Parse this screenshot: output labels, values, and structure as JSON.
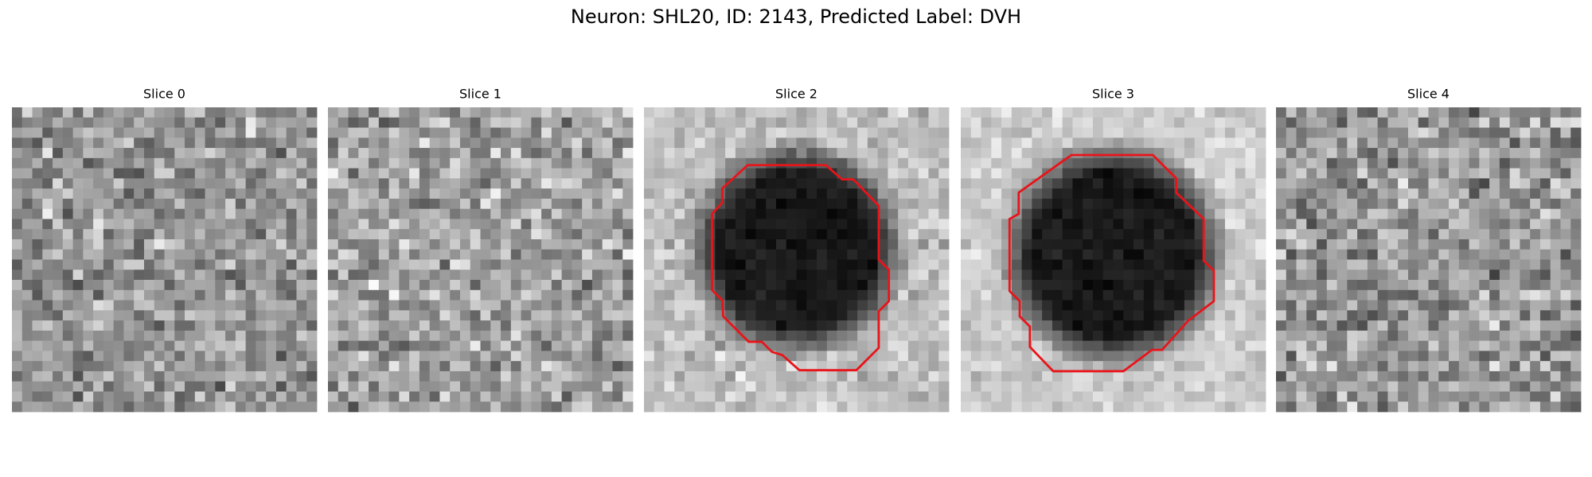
{
  "figure": {
    "title": "Neuron: SHL20, ID: 2143, Predicted Label: DVH",
    "panels": [
      {
        "title": "Slice 0"
      },
      {
        "title": "Slice 1"
      },
      {
        "title": "Slice 2"
      },
      {
        "title": "Slice 3"
      },
      {
        "title": "Slice 4"
      }
    ]
  }
}
